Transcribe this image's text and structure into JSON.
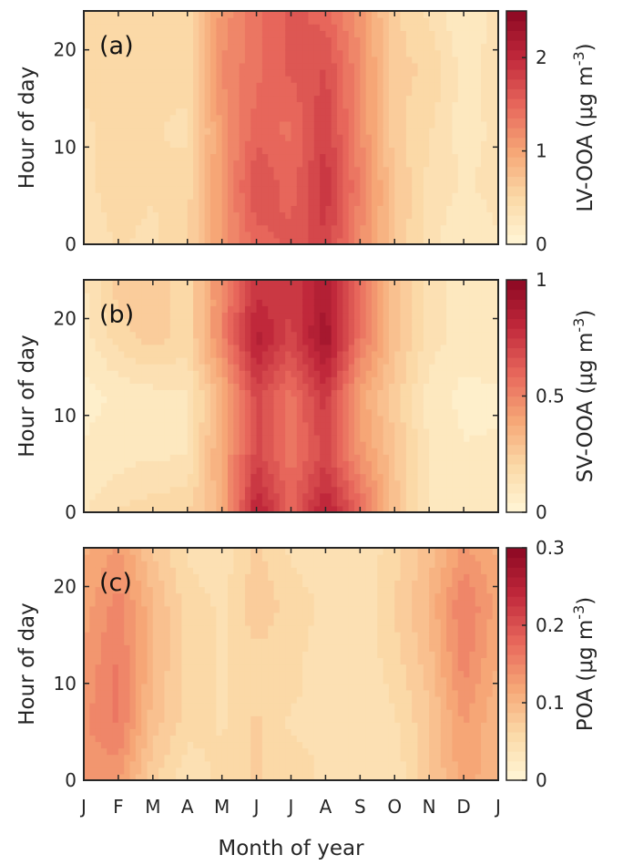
{
  "chart_data": [
    {
      "type": "heatmap",
      "panel_label": "(a)",
      "ylabel": "Hour of day",
      "yticks": [
        "0",
        "10",
        "20"
      ],
      "colorbar": {
        "label": "LV-OOA (μg m",
        "unit_sup": "-3",
        "unit_close": ")",
        "range": [
          0,
          2.5
        ],
        "ticks": [
          "0",
          "1",
          "2"
        ],
        "tick_values": [
          0,
          1,
          2
        ]
      },
      "months": [
        1,
        2,
        3,
        4,
        5,
        6,
        7,
        8,
        9,
        10,
        11,
        12,
        13
      ],
      "hours": [
        0,
        6,
        12,
        18,
        24
      ],
      "z": [
        [
          0.35,
          0.45,
          0.4,
          0.55,
          1.1,
          1.5,
          1.6,
          1.8,
          1.2,
          0.7,
          0.35,
          0.2,
          0.3
        ],
        [
          0.4,
          0.5,
          0.45,
          0.5,
          1.1,
          1.7,
          1.5,
          1.9,
          1.3,
          0.7,
          0.4,
          0.3,
          0.35
        ],
        [
          0.4,
          0.5,
          0.45,
          0.4,
          1.1,
          1.5,
          1.4,
          1.8,
          1.2,
          0.6,
          0.45,
          0.25,
          0.35
        ],
        [
          0.5,
          0.55,
          0.5,
          0.5,
          1.2,
          1.4,
          1.6,
          1.7,
          1.2,
          0.6,
          0.55,
          0.25,
          0.4
        ],
        [
          0.45,
          0.55,
          0.5,
          0.5,
          1.1,
          1.4,
          1.6,
          1.5,
          1.1,
          0.6,
          0.4,
          0.2,
          0.35
        ]
      ],
      "max_value": 2.5
    },
    {
      "type": "heatmap",
      "panel_label": "(b)",
      "ylabel": "Hour of day",
      "yticks": [
        "0",
        "10",
        "20"
      ],
      "colorbar": {
        "label": "SV-OOA (μg m",
        "unit_sup": "-3",
        "unit_close": ")",
        "range": [
          0,
          1
        ],
        "ticks": [
          "0",
          "0.5",
          "1"
        ],
        "tick_values": [
          0,
          0.5,
          1
        ]
      },
      "months": [
        1,
        2,
        3,
        4,
        5,
        6,
        7,
        8,
        9,
        10,
        11,
        12,
        13
      ],
      "hours": [
        0,
        6,
        12,
        18,
        24
      ],
      "z": [
        [
          0.12,
          0.18,
          0.2,
          0.22,
          0.35,
          0.85,
          0.6,
          0.85,
          0.6,
          0.3,
          0.12,
          0.08,
          0.1
        ],
        [
          0.08,
          0.1,
          0.12,
          0.12,
          0.4,
          0.7,
          0.55,
          0.7,
          0.45,
          0.28,
          0.12,
          0.08,
          0.08
        ],
        [
          0.06,
          0.08,
          0.1,
          0.12,
          0.35,
          0.7,
          0.55,
          0.75,
          0.4,
          0.25,
          0.1,
          0.06,
          0.07
        ],
        [
          0.1,
          0.2,
          0.25,
          0.2,
          0.5,
          0.85,
          0.7,
          0.92,
          0.55,
          0.3,
          0.15,
          0.1,
          0.1
        ],
        [
          0.12,
          0.25,
          0.25,
          0.2,
          0.5,
          0.75,
          0.75,
          0.85,
          0.55,
          0.3,
          0.15,
          0.1,
          0.12
        ]
      ],
      "max_value": 1
    },
    {
      "type": "heatmap",
      "panel_label": "(c)",
      "ylabel": "Hour of day",
      "yticks": [
        "0",
        "10",
        "20"
      ],
      "xlabel": "Month of year",
      "xticks": [
        "J",
        "F",
        "M",
        "A",
        "M",
        "J",
        "J",
        "A",
        "S",
        "O",
        "N",
        "D",
        "J"
      ],
      "colorbar": {
        "label": "POA (μg m",
        "unit_sup": "-3",
        "unit_close": ")",
        "range": [
          0,
          0.3
        ],
        "ticks": [
          "0",
          "0.1",
          "0.2",
          "0.3"
        ],
        "tick_values": [
          0,
          0.1,
          0.2,
          0.3
        ]
      },
      "months": [
        1,
        2,
        3,
        4,
        5,
        6,
        7,
        8,
        9,
        10,
        11,
        12,
        13
      ],
      "hours": [
        0,
        6,
        12,
        18,
        24
      ],
      "z": [
        [
          0.13,
          0.13,
          0.07,
          0.04,
          0.06,
          0.07,
          0.06,
          0.05,
          0.05,
          0.04,
          0.08,
          0.12,
          0.1
        ],
        [
          0.14,
          0.16,
          0.09,
          0.06,
          0.05,
          0.07,
          0.05,
          0.05,
          0.04,
          0.05,
          0.08,
          0.13,
          0.1
        ],
        [
          0.13,
          0.16,
          0.1,
          0.06,
          0.05,
          0.06,
          0.06,
          0.04,
          0.04,
          0.06,
          0.09,
          0.15,
          0.11
        ],
        [
          0.12,
          0.15,
          0.1,
          0.06,
          0.05,
          0.08,
          0.06,
          0.05,
          0.04,
          0.07,
          0.1,
          0.16,
          0.12
        ],
        [
          0.11,
          0.13,
          0.08,
          0.05,
          0.04,
          0.07,
          0.05,
          0.04,
          0.04,
          0.06,
          0.09,
          0.13,
          0.11
        ]
      ],
      "max_value": 0.3
    }
  ],
  "colormap": [
    "#fff6d7",
    "#fbd9a7",
    "#f6a676",
    "#e7665b",
    "#c0283b",
    "#8c0822"
  ]
}
